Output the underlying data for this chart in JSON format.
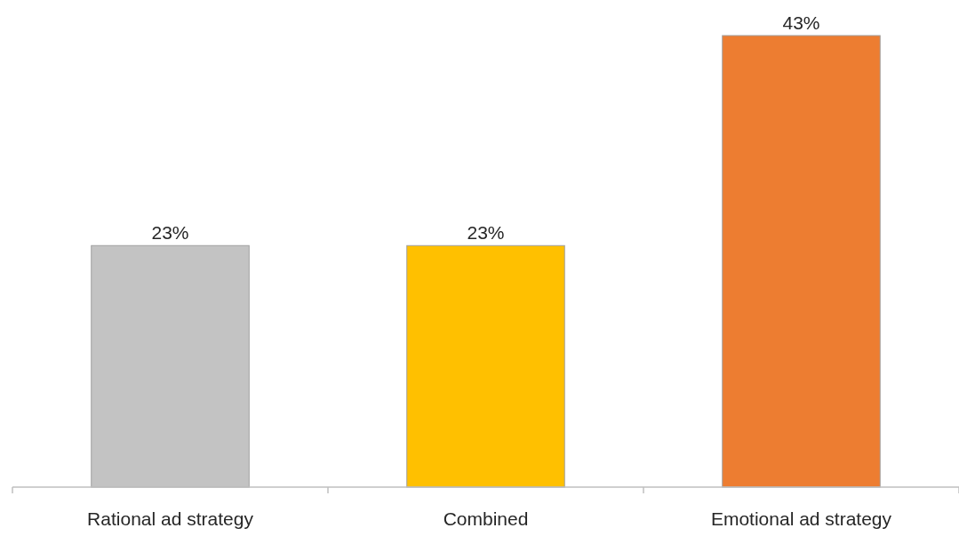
{
  "chart_data": {
    "type": "bar",
    "categories": [
      "Rational ad strategy",
      "Combined",
      "Emotional ad strategy"
    ],
    "values": [
      23,
      23,
      43
    ],
    "colors": [
      "#c3c3c3",
      "#ffc000",
      "#ed7d31"
    ],
    "value_labels": [
      "23%",
      "23%",
      "43%"
    ]
  }
}
